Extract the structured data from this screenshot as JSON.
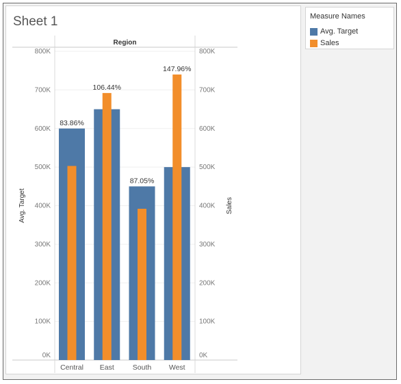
{
  "sheet": {
    "title": "Sheet 1"
  },
  "legend": {
    "title": "Measure Names",
    "items": [
      {
        "label": "Avg. Target",
        "color": "#4e79a7"
      },
      {
        "label": "Sales",
        "color": "#f28e2b"
      }
    ]
  },
  "chart_data": {
    "type": "bar",
    "header": "Region",
    "categories": [
      "Central",
      "East",
      "South",
      "West"
    ],
    "series": [
      {
        "name": "Avg. Target",
        "values": [
          600000,
          650000,
          450000,
          500000
        ],
        "color": "#4e79a7"
      },
      {
        "name": "Sales",
        "values": [
          503000,
          692000,
          392000,
          740000
        ],
        "color": "#f28e2b"
      }
    ],
    "data_labels": [
      "83.86%",
      "106.44%",
      "87.05%",
      "147.96%"
    ],
    "ylabel_left": "Avg. Target",
    "ylabel_right": "Sales",
    "ylim": [
      0,
      800000
    ],
    "ticks": [
      {
        "value": 0,
        "label": "0K"
      },
      {
        "value": 100000,
        "label": "100K"
      },
      {
        "value": 200000,
        "label": "200K"
      },
      {
        "value": 300000,
        "label": "300K"
      },
      {
        "value": 400000,
        "label": "400K"
      },
      {
        "value": 500000,
        "label": "500K"
      },
      {
        "value": 600000,
        "label": "600K"
      },
      {
        "value": 700000,
        "label": "700K"
      },
      {
        "value": 800000,
        "label": "800K"
      }
    ],
    "dual_axis": true,
    "grid": true,
    "legend_position": "right"
  }
}
